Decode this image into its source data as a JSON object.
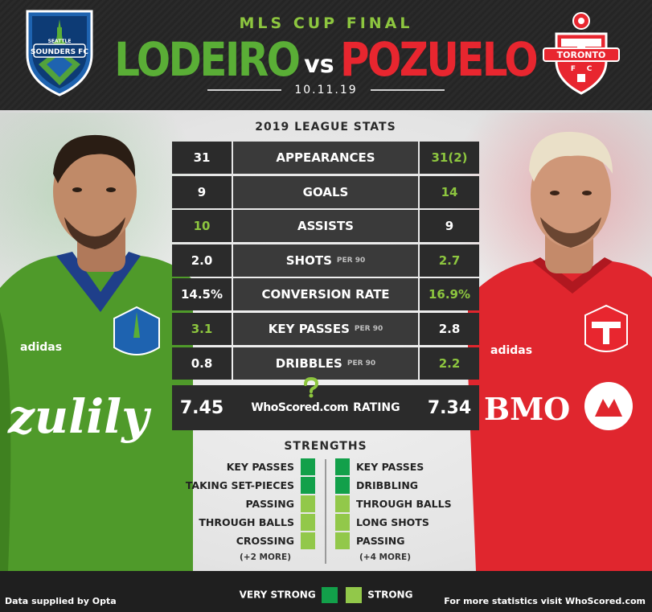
{
  "header": {
    "event": "MLS CUP FINAL",
    "player_left": "LODEIRO",
    "vs": "vs",
    "player_right": "POZUELO",
    "date": "10.11.19",
    "crest_left_text": "SEATTLE SOUNDERS FC",
    "crest_right_text": "TORONTO FC"
  },
  "colors": {
    "very_strong": "#12a04a",
    "strong": "#92c84a",
    "seattle_green": "#5aae36",
    "toronto_red": "#e8262f"
  },
  "stats": {
    "title": "2019 LEAGUE STATS",
    "rows": [
      {
        "label": "APPEARANCES",
        "sub": "",
        "left": "31",
        "right": "31(2)",
        "winner": "right"
      },
      {
        "label": "GOALS",
        "sub": "",
        "left": "9",
        "right": "14",
        "winner": "right"
      },
      {
        "label": "ASSISTS",
        "sub": "",
        "left": "10",
        "right": "9",
        "winner": "left"
      },
      {
        "label": "SHOTS",
        "sub": "PER 90",
        "left": "2.0",
        "right": "2.7",
        "winner": "right"
      },
      {
        "label": "CONVERSION RATE",
        "sub": "",
        "left": "14.5%",
        "right": "16.9%",
        "winner": "right"
      },
      {
        "label": "KEY PASSES",
        "sub": "PER 90",
        "left": "3.1",
        "right": "2.8",
        "winner": "left"
      },
      {
        "label": "DRIBBLES",
        "sub": "PER 90",
        "left": "0.8",
        "right": "2.2",
        "winner": "right"
      }
    ],
    "rating": {
      "left": "7.45",
      "right": "7.34",
      "brand": "WhoScored.com",
      "label": "RATING"
    }
  },
  "strengths": {
    "title": "STRENGTHS",
    "left": [
      {
        "label": "KEY PASSES",
        "level": "very_strong"
      },
      {
        "label": "TAKING SET-PIECES",
        "level": "very_strong"
      },
      {
        "label": "PASSING",
        "level": "strong"
      },
      {
        "label": "THROUGH BALLS",
        "level": "strong"
      },
      {
        "label": "CROSSING",
        "level": "strong"
      }
    ],
    "left_more": "(+2 MORE)",
    "right": [
      {
        "label": "KEY PASSES",
        "level": "very_strong"
      },
      {
        "label": "DRIBBLING",
        "level": "very_strong"
      },
      {
        "label": "THROUGH BALLS",
        "level": "strong"
      },
      {
        "label": "LONG SHOTS",
        "level": "strong"
      },
      {
        "label": "PASSING",
        "level": "strong"
      }
    ],
    "right_more": "(+4 MORE)"
  },
  "legend": {
    "very_strong": "VERY STRONG",
    "strong": "STRONG"
  },
  "footer": {
    "left": "Data supplied by Opta",
    "right": "For more statistics visit WhoScored.com"
  },
  "jerseys": {
    "left_sponsor": "zulily",
    "left_brand": "adidas",
    "right_sponsor": "BMO",
    "right_brand": "adidas"
  }
}
